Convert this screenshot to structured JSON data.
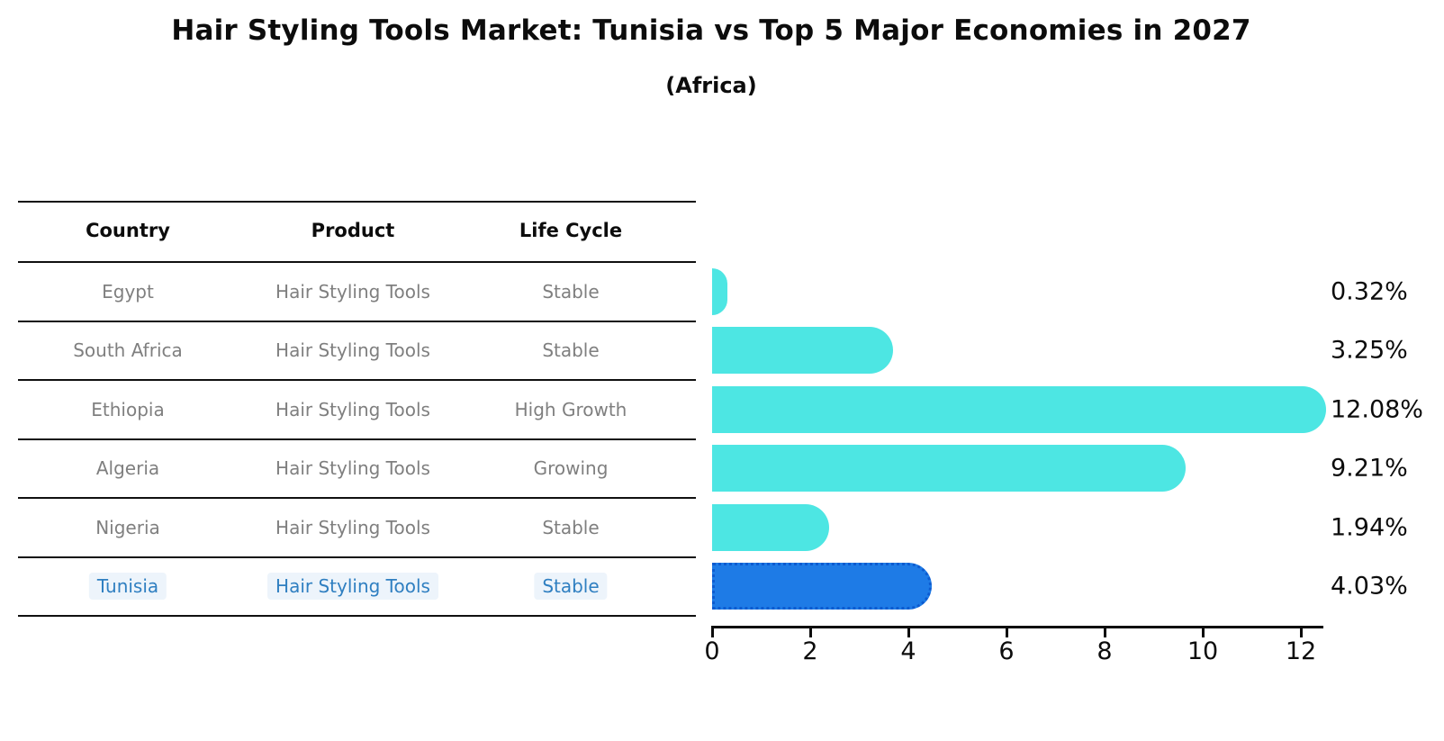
{
  "title": "Hair Styling Tools Market: Tunisia vs Top 5 Major Economies in 2027",
  "subtitle": "(Africa)",
  "table": {
    "headers": [
      "Country",
      "Product",
      "Life Cycle"
    ],
    "rows": [
      {
        "country": "Egypt",
        "product": "Hair Styling Tools",
        "life_cycle": "Stable",
        "highlight": false
      },
      {
        "country": "South Africa",
        "product": "Hair Styling Tools",
        "life_cycle": "Stable",
        "highlight": false
      },
      {
        "country": "Ethiopia",
        "product": "Hair Styling Tools",
        "life_cycle": "High Growth",
        "highlight": false
      },
      {
        "country": "Algeria",
        "product": "Hair Styling Tools",
        "life_cycle": "Growing",
        "highlight": false
      },
      {
        "country": "Nigeria",
        "product": "Hair Styling Tools",
        "life_cycle": "Stable",
        "highlight": false
      },
      {
        "country": "Tunisia",
        "product": "Hair Styling Tools",
        "life_cycle": "Stable",
        "highlight": true
      }
    ]
  },
  "chart_data": {
    "type": "bar",
    "orientation": "horizontal",
    "title": "Hair Styling Tools Market: Tunisia vs Top 5 Major Economies in 2027",
    "subtitle": "(Africa)",
    "categories": [
      "Egypt",
      "South Africa",
      "Ethiopia",
      "Algeria",
      "Nigeria",
      "Tunisia"
    ],
    "values": [
      0.32,
      3.25,
      12.08,
      9.21,
      1.94,
      4.03
    ],
    "value_labels": [
      "0.32%",
      "3.25%",
      "12.08%",
      "9.21%",
      "1.94%",
      "4.03%"
    ],
    "highlight_index": 5,
    "x_ticks": [
      0,
      2,
      4,
      6,
      8,
      10,
      12
    ],
    "x_tick_labels": [
      "0",
      "2",
      "4",
      "6",
      "8",
      "10",
      "12"
    ],
    "xlim": [
      0,
      12.5
    ],
    "grid": false,
    "legend": null,
    "colors": {
      "bar": "#4de6e3",
      "highlight_bar": "#1e7be6",
      "highlight_border": "#0c5bd0",
      "highlight_text": "#2f7fc1",
      "axis": "#0c0c0c",
      "table_text": "#7f7f7f"
    }
  }
}
